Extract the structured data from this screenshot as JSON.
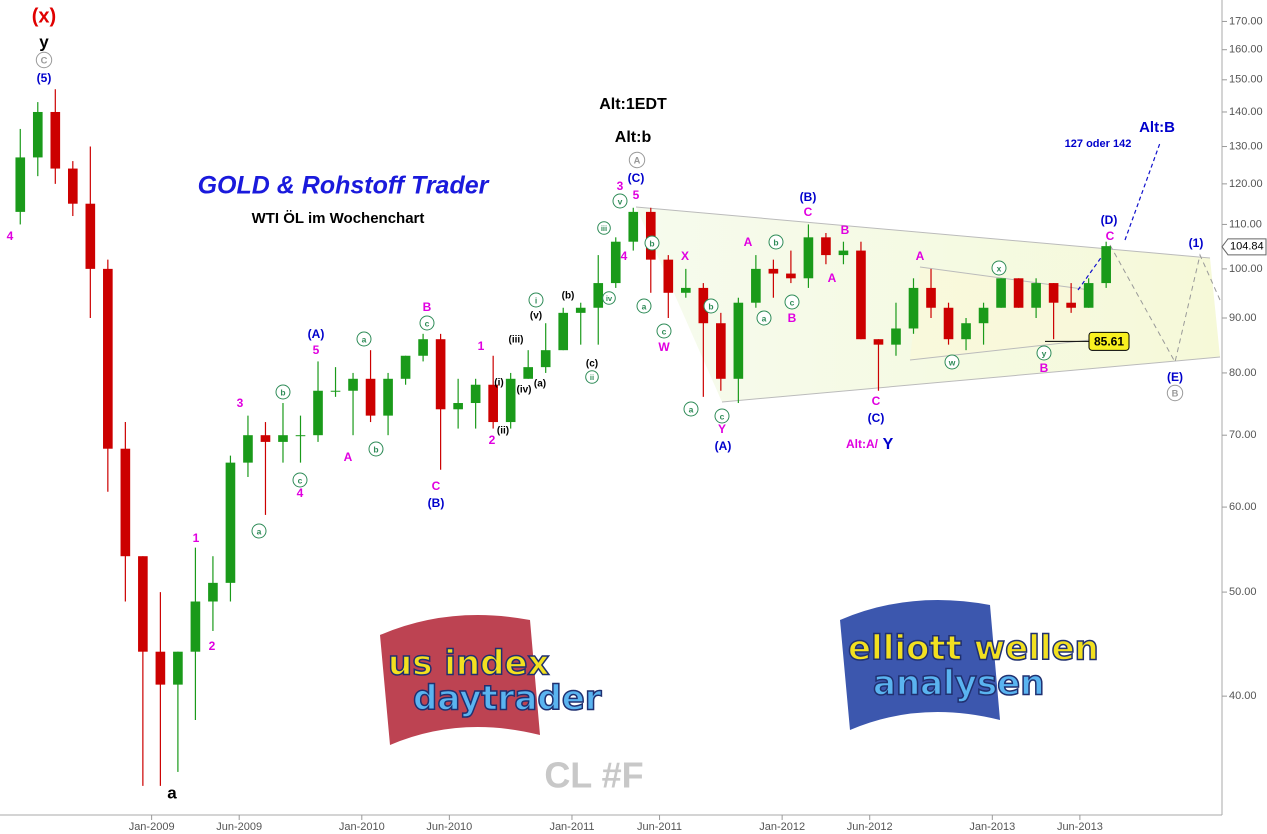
{
  "chart_data": {
    "type": "candlestick",
    "title": "GOLD & Rohstoff Trader",
    "subtitle": "WTI ÖL im Wochenchart",
    "symbol": "CL #F",
    "log_scale": true,
    "up_color": "#1a9a1a",
    "down_color": "#cc0000",
    "x": [
      "2008-05",
      "2008-06",
      "2008-07",
      "2008-08",
      "2008-09",
      "2008-10",
      "2008-11",
      "2008-12",
      "2009-01",
      "2009-02",
      "2009-03",
      "2009-04",
      "2009-05",
      "2009-06",
      "2009-07",
      "2009-08",
      "2009-09",
      "2009-10",
      "2009-11",
      "2009-12",
      "2010-01",
      "2010-02",
      "2010-03",
      "2010-04",
      "2010-05",
      "2010-06",
      "2010-07",
      "2010-08",
      "2010-09",
      "2010-10",
      "2010-11",
      "2010-12",
      "2011-01",
      "2011-02",
      "2011-03",
      "2011-04",
      "2011-05",
      "2011-06",
      "2011-07",
      "2011-08",
      "2011-09",
      "2011-10",
      "2011-11",
      "2011-12",
      "2012-01",
      "2012-02",
      "2012-03",
      "2012-04",
      "2012-05",
      "2012-06",
      "2012-07",
      "2012-08",
      "2012-09",
      "2012-10",
      "2012-11",
      "2012-12",
      "2013-01",
      "2013-02",
      "2013-03",
      "2013-04",
      "2013-05",
      "2013-06",
      "2013-07"
    ],
    "open": [
      113,
      127,
      140,
      124,
      115,
      100,
      68,
      54,
      44,
      41,
      44,
      49,
      51,
      66,
      70,
      69,
      70,
      70,
      77,
      77,
      79,
      73,
      79,
      83,
      86,
      74,
      75,
      78,
      72,
      79,
      81,
      84,
      91,
      92,
      97,
      106,
      113,
      102,
      95,
      96,
      89,
      79,
      93,
      100,
      99,
      98,
      107,
      103,
      104,
      86,
      85,
      88,
      96,
      92,
      86,
      89,
      92,
      98,
      92,
      97,
      93,
      92,
      97
    ],
    "high": [
      135,
      143,
      147,
      126,
      130,
      102,
      72,
      54,
      50,
      44,
      55,
      54,
      67,
      73,
      72,
      75,
      73,
      82,
      81,
      80,
      84,
      80,
      83,
      87,
      87,
      79,
      79,
      83,
      80,
      84,
      89,
      92,
      93,
      103,
      107,
      114,
      114,
      103,
      100,
      97,
      91,
      94,
      103,
      102,
      104,
      110,
      108,
      106,
      106,
      86,
      93,
      98,
      100,
      93,
      90,
      93,
      98,
      98,
      98,
      97,
      97,
      98,
      106
    ],
    "low": [
      110,
      122,
      120,
      112,
      90,
      62,
      49,
      33,
      33,
      34,
      38,
      46,
      49,
      64,
      59,
      66,
      66,
      69,
      76,
      70,
      72,
      70,
      78,
      82,
      65,
      71,
      71,
      71,
      71,
      79,
      80,
      84,
      85,
      85,
      96,
      104,
      95,
      90,
      94,
      76,
      77,
      75,
      92,
      94,
      97,
      96,
      101,
      101,
      86,
      77,
      83,
      87,
      90,
      85,
      84,
      85,
      92,
      92,
      90,
      86,
      91,
      92,
      96
    ],
    "close": [
      127,
      140,
      124,
      115,
      100,
      68,
      54,
      44,
      41,
      44,
      49,
      51,
      66,
      70,
      69,
      70,
      70,
      77,
      77,
      79,
      73,
      79,
      83,
      86,
      74,
      75,
      78,
      72,
      79,
      81,
      84,
      91,
      92,
      97,
      106,
      113,
      102,
      95,
      96,
      89,
      79,
      93,
      100,
      99,
      98,
      107,
      103,
      104,
      86,
      85,
      88,
      96,
      92,
      86,
      89,
      92,
      98,
      92,
      97,
      93,
      92,
      97,
      105
    ],
    "xlim": [
      "2008-04",
      "2014-02"
    ],
    "xticks": [
      {
        "value": "2009-01",
        "label": "Jan-2009"
      },
      {
        "value": "2009-06",
        "label": "Jun-2009"
      },
      {
        "value": "2010-01",
        "label": "Jan-2010"
      },
      {
        "value": "2010-06",
        "label": "Jun-2010"
      },
      {
        "value": "2011-01",
        "label": "Jan-2011"
      },
      {
        "value": "2011-06",
        "label": "Jun-2011"
      },
      {
        "value": "2012-01",
        "label": "Jan-2012"
      },
      {
        "value": "2012-06",
        "label": "Jun-2012"
      },
      {
        "value": "2013-01",
        "label": "Jan-2013"
      },
      {
        "value": "2013-06",
        "label": "Jun-2013"
      }
    ],
    "ylim": [
      31,
      178
    ],
    "yticks": [
      {
        "value": 40,
        "label": "40.00"
      },
      {
        "value": 50,
        "label": "50.00"
      },
      {
        "value": 60,
        "label": "60.00"
      },
      {
        "value": 70,
        "label": "70.00"
      },
      {
        "value": 80,
        "label": "80.00"
      },
      {
        "value": 90,
        "label": "90.00"
      },
      {
        "value": 100,
        "label": "100.00"
      },
      {
        "value": 110,
        "label": "110.00"
      },
      {
        "value": 120,
        "label": "120.00"
      },
      {
        "value": 130,
        "label": "130.00"
      },
      {
        "value": 140,
        "label": "140.00"
      },
      {
        "value": 150,
        "label": "150.00"
      },
      {
        "value": 160,
        "label": "160.00"
      },
      {
        "value": 170,
        "label": "170.00"
      }
    ],
    "last_price": {
      "value": 104.84,
      "label": "104.84"
    },
    "level_label": {
      "value": 85.61,
      "label": "85.61"
    },
    "logos": [
      [
        "us index",
        "daytrader"
      ],
      [
        "elliott wellen",
        "analysen"
      ]
    ],
    "annotations": [
      {
        "text": "(x)",
        "color": "#e00000"
      },
      {
        "text": "y",
        "color": "#000"
      },
      {
        "text": "C",
        "color": "#999"
      },
      {
        "text": "(5)",
        "color": "#0000cc"
      },
      {
        "text": "4",
        "color": "#e000e0"
      },
      {
        "text": "a",
        "color": "#000"
      },
      {
        "text": "1",
        "color": "#e000e0"
      },
      {
        "text": "2",
        "color": "#e000e0"
      },
      {
        "text": "3",
        "color": "#e000e0"
      },
      {
        "text": "a",
        "color": "#2e8b57"
      },
      {
        "text": "b",
        "color": "#2e8b57"
      },
      {
        "text": "c",
        "color": "#2e8b57"
      },
      {
        "text": "4",
        "color": "#e000e0"
      },
      {
        "text": "(A)",
        "color": "#0000cc"
      },
      {
        "text": "5",
        "color": "#e000e0"
      },
      {
        "text": "a",
        "color": "#2e8b57"
      },
      {
        "text": "A",
        "color": "#e000e0"
      },
      {
        "text": "b",
        "color": "#2e8b57"
      },
      {
        "text": "B",
        "color": "#e000e0"
      },
      {
        "text": "c",
        "color": "#2e8b57"
      },
      {
        "text": "C",
        "color": "#e000e0"
      },
      {
        "text": "(B)",
        "color": "#0000cc"
      },
      {
        "text": "1",
        "color": "#e000e0"
      },
      {
        "text": "2",
        "color": "#e000e0"
      },
      {
        "text": "(i)",
        "color": "#000"
      },
      {
        "text": "(ii)",
        "color": "#000"
      },
      {
        "text": "(iii)",
        "color": "#000"
      },
      {
        "text": "(iv)",
        "color": "#000"
      },
      {
        "text": "(a)",
        "color": "#000"
      },
      {
        "text": "(v)",
        "color": "#000"
      },
      {
        "text": "i",
        "color": "#2e8b57"
      },
      {
        "text": "(b)",
        "color": "#000"
      },
      {
        "text": "(c)",
        "color": "#000"
      },
      {
        "text": "ii",
        "color": "#2e8b57"
      },
      {
        "text": "Alt:1EDT",
        "color": "#000"
      },
      {
        "text": "Alt:b",
        "color": "#000"
      },
      {
        "text": "A",
        "color": "#999"
      },
      {
        "text": "(C)",
        "color": "#0000cc"
      },
      {
        "text": "5",
        "color": "#e000e0"
      },
      {
        "text": "3",
        "color": "#e000e0"
      },
      {
        "text": "v",
        "color": "#2e8b57"
      },
      {
        "text": "iii",
        "color": "#2e8b57"
      },
      {
        "text": "4",
        "color": "#e000e0"
      },
      {
        "text": "b",
        "color": "#2e8b57"
      },
      {
        "text": "iv",
        "color": "#2e8b57"
      },
      {
        "text": "a",
        "color": "#2e8b57"
      },
      {
        "text": "c",
        "color": "#2e8b57"
      },
      {
        "text": "W",
        "color": "#e000e0"
      },
      {
        "text": "X",
        "color": "#e000e0"
      },
      {
        "text": "b",
        "color": "#2e8b57"
      },
      {
        "text": "a",
        "color": "#2e8b57"
      },
      {
        "text": "c",
        "color": "#2e8b57"
      },
      {
        "text": "Y",
        "color": "#e000e0"
      },
      {
        "text": "(A)",
        "color": "#0000cc"
      },
      {
        "text": "A",
        "color": "#e000e0"
      },
      {
        "text": "b",
        "color": "#2e8b57"
      },
      {
        "text": "a",
        "color": "#2e8b57"
      },
      {
        "text": "c",
        "color": "#2e8b57"
      },
      {
        "text": "B",
        "color": "#e000e0"
      },
      {
        "text": "(B)",
        "color": "#0000cc"
      },
      {
        "text": "C",
        "color": "#e000e0"
      },
      {
        "text": "B",
        "color": "#e000e0"
      },
      {
        "text": "A",
        "color": "#e000e0"
      },
      {
        "text": "C",
        "color": "#e000e0"
      },
      {
        "text": "(C)",
        "color": "#0000cc"
      },
      {
        "text": "Alt:A/",
        "color": "#e000e0"
      },
      {
        "text": "Y",
        "color": "#0000cc"
      },
      {
        "text": "A",
        "color": "#e000e0"
      },
      {
        "text": "x",
        "color": "#2e8b57"
      },
      {
        "text": "w",
        "color": "#2e8b57"
      },
      {
        "text": "y",
        "color": "#2e8b57"
      },
      {
        "text": "B",
        "color": "#e000e0"
      },
      {
        "text": "(D)",
        "color": "#0000cc"
      },
      {
        "text": "C",
        "color": "#e000e0"
      },
      {
        "text": "127 oder 142",
        "color": "#0000cc"
      },
      {
        "text": "Alt:B",
        "color": "#0000cc"
      },
      {
        "text": "(1)",
        "color": "#0000cc"
      },
      {
        "text": "(E)",
        "color": "#0000cc"
      },
      {
        "text": "B",
        "color": "#999"
      }
    ]
  }
}
